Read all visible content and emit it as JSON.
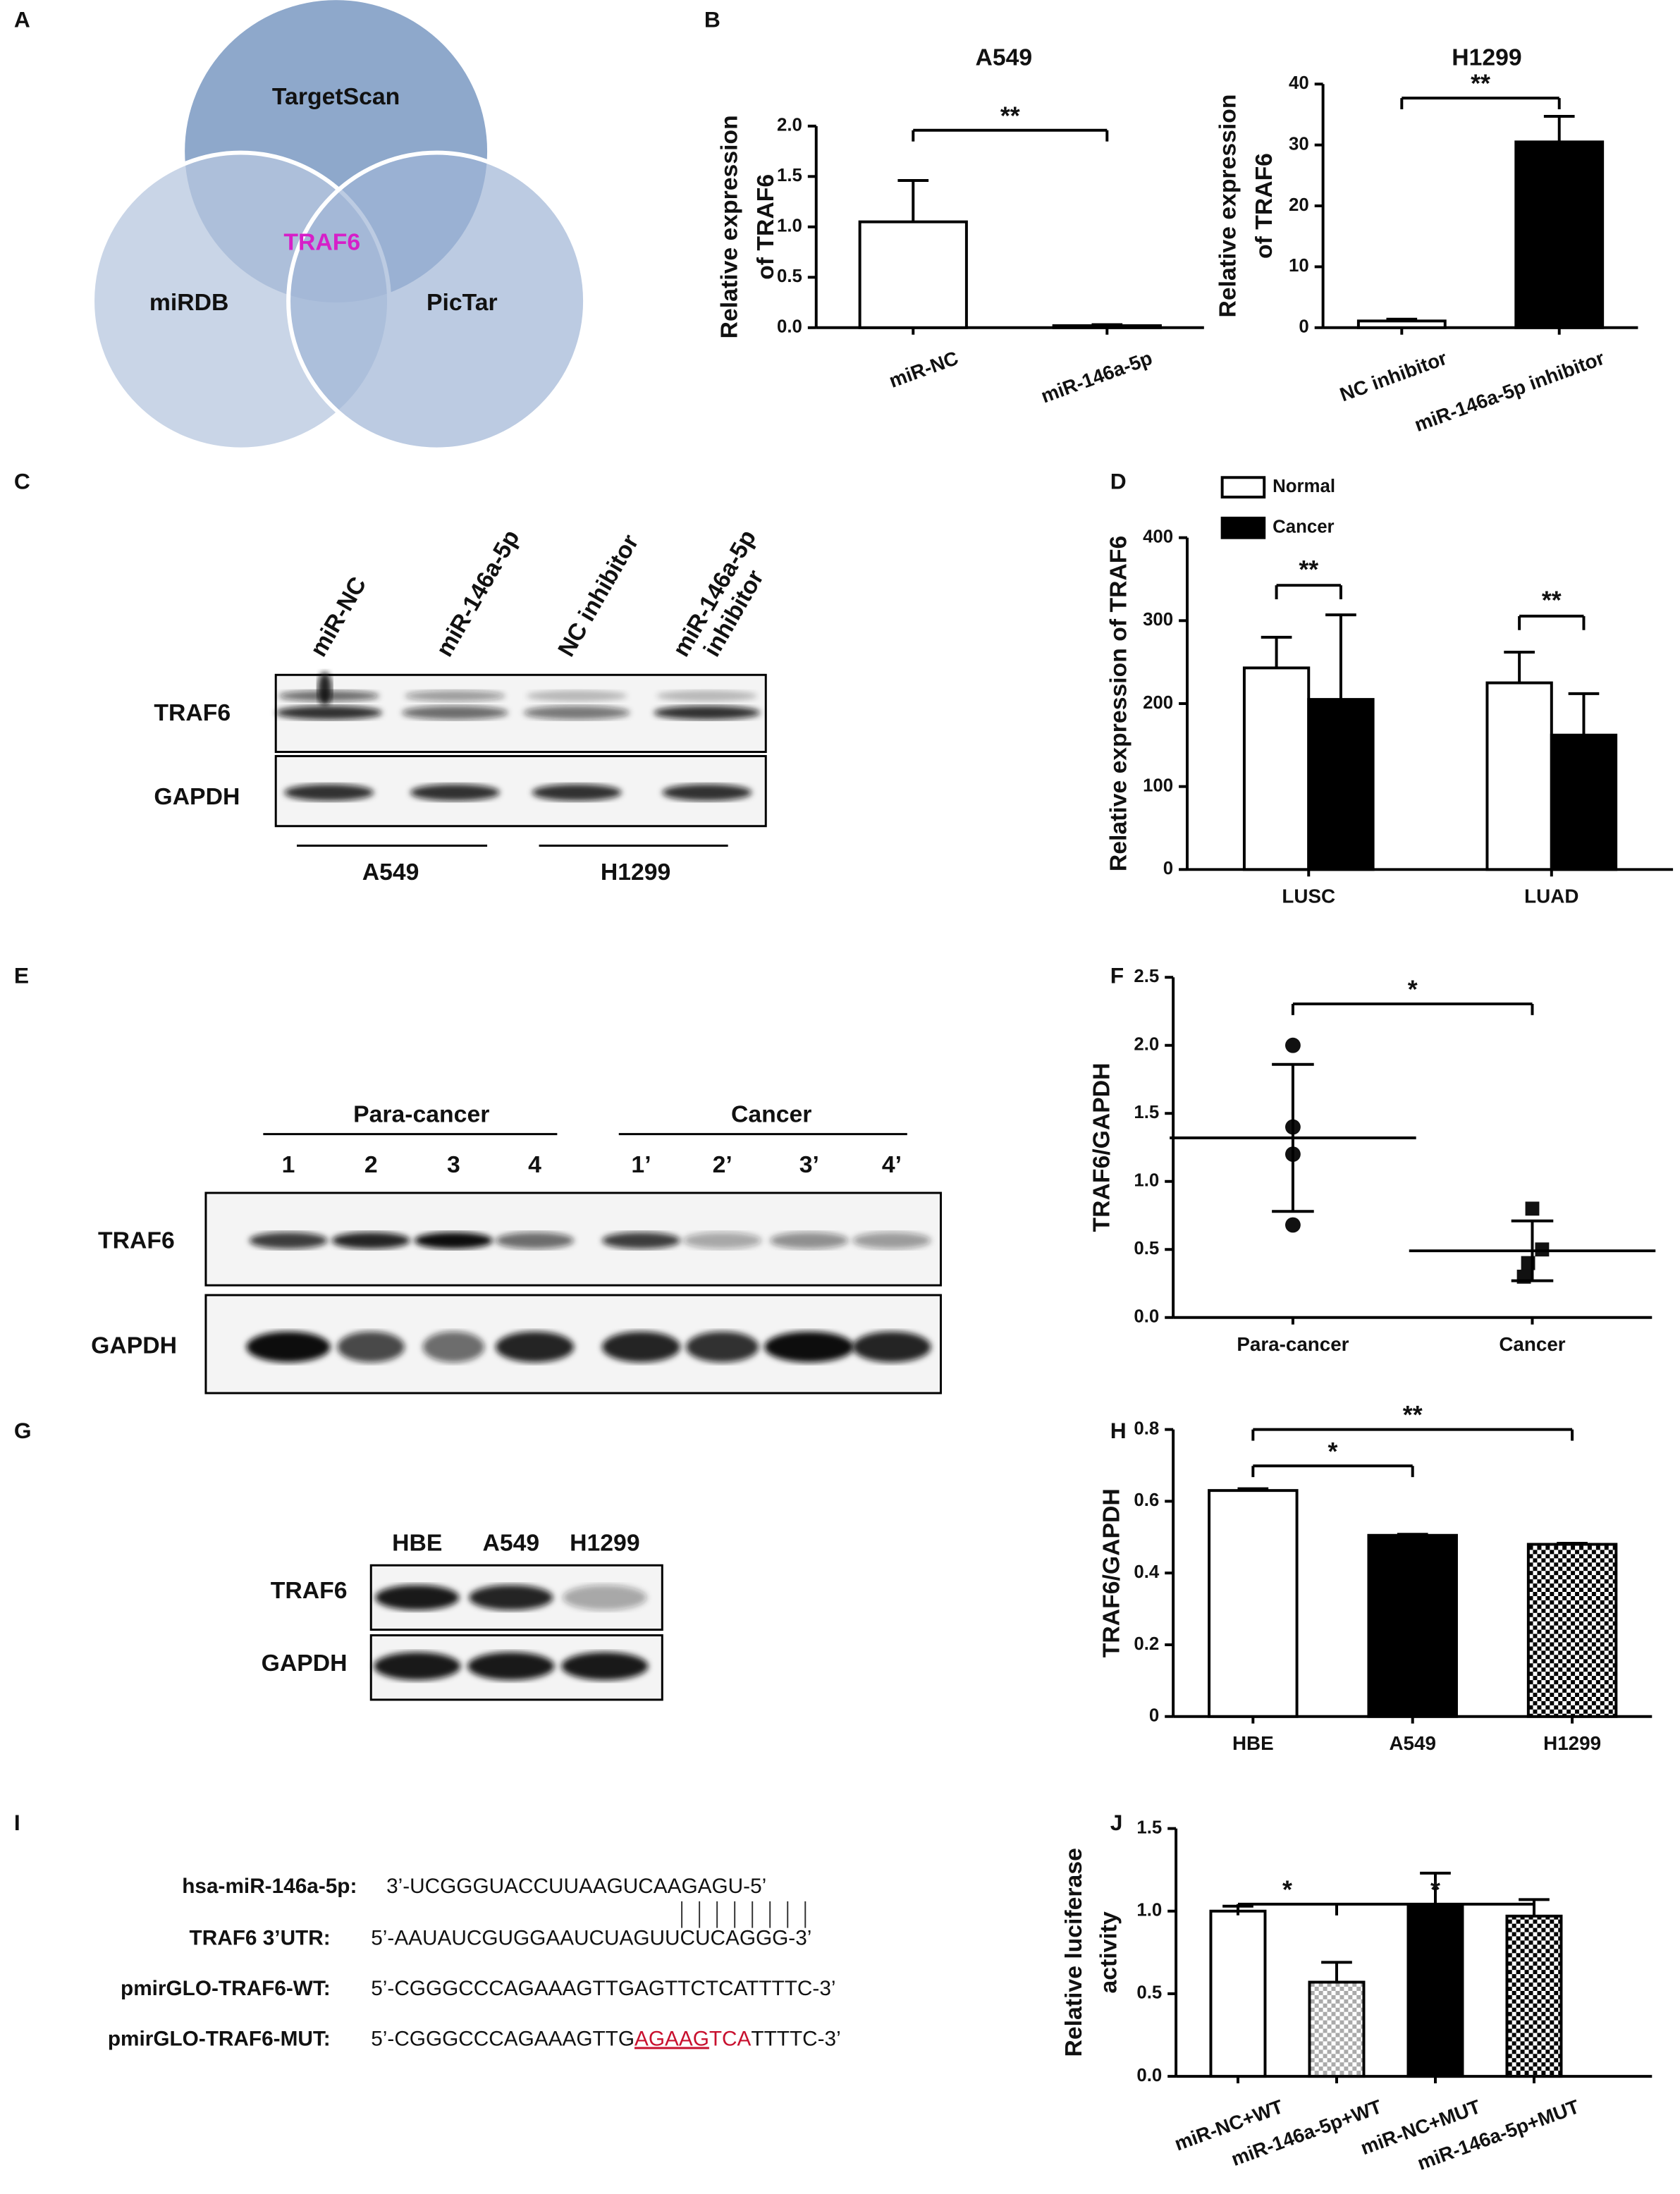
{
  "panel_labels": [
    "A",
    "B",
    "C",
    "D",
    "E",
    "F",
    "G",
    "H",
    "I",
    "J"
  ],
  "venn": {
    "sets": [
      "TargetScan",
      "miRDB",
      "PicTar"
    ],
    "intersection": "TRAF6"
  },
  "blot_c": {
    "lanes": [
      [
        "miR-NC"
      ],
      [
        "miR-146a-5p"
      ],
      [
        "NC inhibitor"
      ],
      [
        "miR-146a-5p",
        "inhibitor"
      ]
    ],
    "rows": [
      "TRAF6",
      "GAPDH"
    ],
    "groups": [
      "A549",
      "H1299"
    ]
  },
  "blot_e": {
    "groups": [
      "Para-cancer",
      "Cancer"
    ],
    "lanes": [
      "1",
      "2",
      "3",
      "4",
      "1’",
      "2’",
      "3’",
      "4’"
    ],
    "rows": [
      "TRAF6",
      "GAPDH"
    ]
  },
  "blot_g": {
    "lanes": [
      "HBE",
      "A549",
      "H1299"
    ],
    "rows": [
      "TRAF6",
      "GAPDH"
    ]
  },
  "sequences": {
    "rows": [
      {
        "label": "hsa-miR-146a-5p:",
        "parts": [
          "3’-UCGGGUACCUUAAGUCAAGAGU-5’"
        ]
      },
      {
        "label": "TRAF6 3’UTR:",
        "parts": [
          "5’-AAUAUCGUGGAAUCUAGUUCUCAGGG-3’"
        ]
      },
      {
        "label": "pmirGLO-TRAF6-WT:",
        "parts": [
          "5’-CGGGCCCAGAAAGTTGAGTTCTCATTTTC-3’"
        ]
      },
      {
        "label": "pmirGLO-TRAF6-MUT:",
        "parts": [
          "5’-CGGGCCCAGAAAGTTG",
          "AGAAG",
          "TCA",
          "TTTTC-3’"
        ]
      }
    ]
  },
  "chart_data": [
    {
      "type": "bar",
      "title": "A549",
      "ylabel": [
        "Relative expression",
        "of TRAF6"
      ],
      "categories": [
        "miR-NC",
        "miR-146a-5p"
      ],
      "values": [
        1.05,
        0.02
      ],
      "errors": [
        0.41,
        0.01
      ],
      "fills": [
        "white",
        "white"
      ],
      "ylim": [
        0,
        2
      ],
      "yticks": [
        {
          "value": 0,
          "label": "0.0"
        },
        0.5,
        {
          "value": 1,
          "label": "1.0"
        },
        1.5,
        {
          "value": 2,
          "label": "2.0"
        }
      ],
      "significance": [
        {
          "from": 0,
          "to": 1,
          "label": "**"
        }
      ]
    },
    {
      "type": "bar",
      "title": "H1299",
      "ylabel": [
        "Relative expression",
        "of TRAF6"
      ],
      "categories": [
        "NC inhibitor",
        "miR-146a-5p inhibitor"
      ],
      "values": [
        1.1,
        30.5
      ],
      "errors": [
        0.3,
        4.2
      ],
      "fills": [
        "white",
        "black"
      ],
      "ylim": [
        0,
        40
      ],
      "yticks": [
        0,
        10,
        20,
        30,
        40
      ],
      "significance": [
        {
          "from": 0,
          "to": 1,
          "label": "**"
        }
      ]
    },
    {
      "type": "bar",
      "ylabel": [
        "Relative expression of TRAF6"
      ],
      "categories": [
        "LUSC",
        "LUAD"
      ],
      "series": [
        {
          "name": "Normal",
          "color": "white",
          "values": [
            243,
            225
          ],
          "errors": [
            37,
            37
          ]
        },
        {
          "name": "Cancer",
          "color": "black",
          "values": [
            205,
            162
          ],
          "errors": [
            102,
            50
          ]
        }
      ],
      "ylim": [
        0,
        400
      ],
      "yticks": [
        0,
        100,
        200,
        300,
        400
      ],
      "legend": "top-left",
      "significance": [
        {
          "from": 0,
          "to": 0,
          "label": "**"
        },
        {
          "from": 1,
          "to": 1,
          "label": "**"
        }
      ]
    },
    {
      "type": "dot",
      "ylabel": [
        "TRAF6/GAPDH"
      ],
      "categories": [
        "Para-cancer",
        "Cancer"
      ],
      "points": [
        [
          2.0,
          1.4,
          1.2,
          0.68
        ],
        [
          0.8,
          0.5,
          0.4,
          0.3
        ]
      ],
      "means": [
        1.32,
        0.49
      ],
      "sds": [
        0.54,
        0.22
      ],
      "markers": [
        "circle",
        "square"
      ],
      "ylim": [
        0,
        2.5
      ],
      "yticks": [
        {
          "value": 0,
          "label": "0.0"
        },
        0.5,
        {
          "value": 1,
          "label": "1.0"
        },
        1.5,
        {
          "value": 2,
          "label": "2.0"
        },
        2.5
      ],
      "significance": [
        {
          "from": 0,
          "to": 1,
          "label": "*"
        }
      ]
    },
    {
      "type": "bar",
      "ylabel": [
        "TRAF6/GAPDH"
      ],
      "categories": [
        "HBE",
        "A549",
        "H1299"
      ],
      "values": [
        0.63,
        0.505,
        0.48
      ],
      "errors": [
        0.005,
        0.003,
        0.003
      ],
      "fills": [
        "white",
        "black",
        "checker"
      ],
      "ylim": [
        0,
        0.8
      ],
      "yticks": [
        0,
        0.2,
        0.4,
        0.6,
        0.8
      ],
      "significance": [
        {
          "from": 0,
          "to": 1,
          "label": "*"
        },
        {
          "from": 0,
          "to": 2,
          "label": "**"
        }
      ]
    },
    {
      "type": "bar",
      "ylabel": [
        "Relative luciferase",
        "activity"
      ],
      "categories": [
        "miR-NC+WT",
        "miR-146a-5p+WT",
        "miR-NC+MUT",
        "miR-146a-5p+MUT"
      ],
      "values": [
        1.0,
        0.57,
        1.04,
        0.97
      ],
      "errors": [
        0.03,
        0.12,
        0.19,
        0.1
      ],
      "fills": [
        "white",
        "light-checker",
        "black",
        "checker"
      ],
      "ylim": [
        0,
        1.5
      ],
      "yticks": [
        {
          "value": 0,
          "label": "0.0"
        },
        0.5,
        {
          "value": 1,
          "label": "1.0"
        },
        1.5
      ],
      "significance": [
        {
          "from": 0,
          "to": 1,
          "label": "*"
        },
        {
          "from": 1,
          "to": 3,
          "label": "*"
        }
      ]
    }
  ]
}
